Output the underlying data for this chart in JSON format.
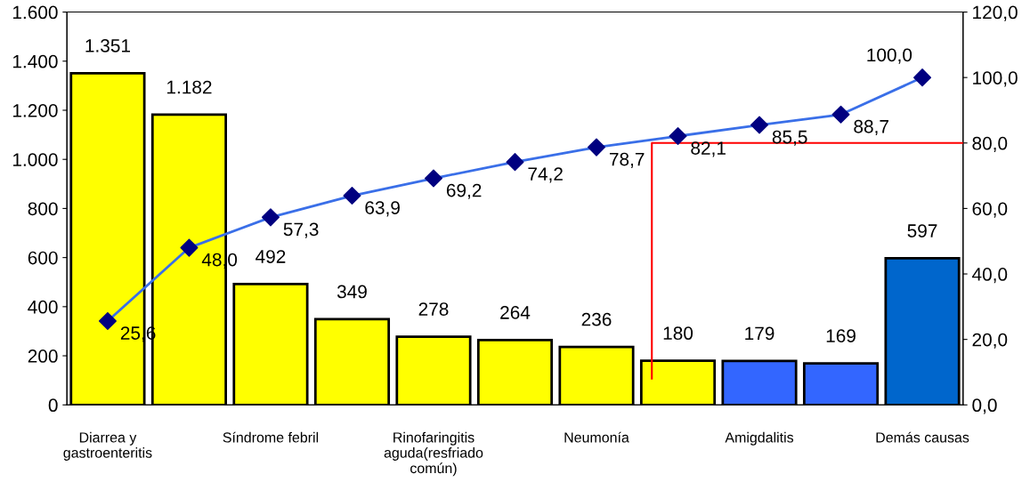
{
  "chart_data": {
    "type": "bar",
    "categories": [
      "Diarrea y gastroenteritis",
      null,
      "Síndrome febril",
      null,
      "Rinofaringitis aguda(resfriado común)",
      null,
      "Neumonía",
      null,
      "Amigdalitis",
      null,
      "Demás causas"
    ],
    "series": [
      {
        "colors": [
          "#ffff00",
          "#ffff00",
          "#ffff00",
          "#ffff00",
          "#ffff00",
          "#ffff00",
          "#ffff00",
          "#ffff00",
          "#3366ff",
          "#3366ff",
          "#0066cc"
        ],
        "values": [
          1351,
          1182,
          492,
          349,
          278,
          264,
          236,
          180,
          179,
          169,
          597
        ],
        "value_labels": [
          "1.351",
          "1.182",
          "492",
          "349",
          "278",
          "264",
          "236",
          "180",
          "179",
          "169",
          "597"
        ]
      },
      {
        "type": "line",
        "axis": "y2",
        "color": "#3a6fe8",
        "marker": "diamond",
        "values": [
          25.6,
          48.0,
          57.3,
          63.9,
          69.2,
          74.2,
          78.7,
          82.1,
          85.5,
          88.7,
          100.0
        ],
        "value_labels": [
          "25,6",
          "48,0",
          "57,3",
          "63,9",
          "69,2",
          "74,2",
          "78,7",
          "82,1",
          "85,5",
          "88,7",
          "100,0"
        ]
      }
    ],
    "ylim": [
      0,
      1600
    ],
    "yticks": [
      {
        "value": 0,
        "label": "0"
      },
      {
        "value": 200,
        "label": "200"
      },
      {
        "value": 400,
        "label": "400"
      },
      {
        "value": 600,
        "label": "600"
      },
      {
        "value": 800,
        "label": "800"
      },
      {
        "value": 1000,
        "label": "1.000"
      },
      {
        "value": 1200,
        "label": "1.200"
      },
      {
        "value": 1400,
        "label": "1.400"
      },
      {
        "value": 1600,
        "label": "1.600"
      }
    ],
    "y2lim": [
      0,
      120
    ],
    "y2ticks": [
      {
        "value": 0,
        "label": "0,0"
      },
      {
        "value": 20,
        "label": "20,0"
      },
      {
        "value": 40,
        "label": "40,0"
      },
      {
        "value": 60,
        "label": "60,0"
      },
      {
        "value": 80,
        "label": "80,0"
      },
      {
        "value": 100,
        "label": "100,0"
      },
      {
        "value": 120,
        "label": "120,0"
      }
    ],
    "ref_lines": [
      {
        "axis": "y2",
        "value": 80,
        "color": "#ff0000"
      }
    ],
    "grid": false,
    "legend": false
  }
}
